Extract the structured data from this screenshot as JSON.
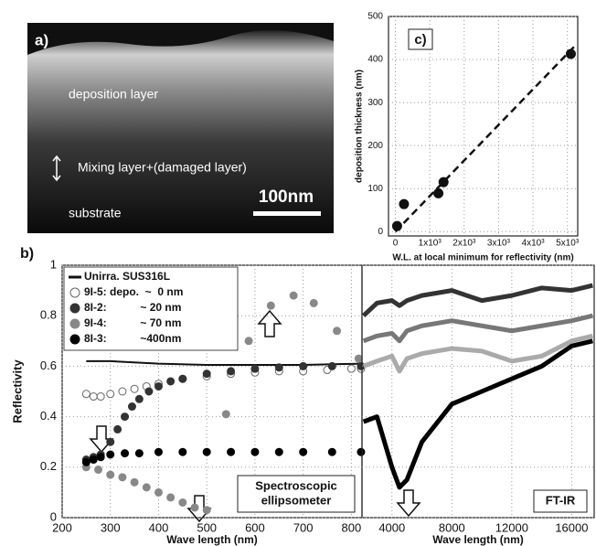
{
  "panel_a": {
    "label": "a)",
    "deposition": "deposition layer",
    "mixing": "Mixing layer+(damaged layer)",
    "substrate": "substrate",
    "scale_bar": "100nm"
  },
  "chart_data": [
    {
      "type": "scatter",
      "label": "c)",
      "x_label": "W.L. at local minimum for reflectivity (nm)",
      "y_label": "deposition thickness (nm)",
      "xlim": [
        -200,
        5300
      ],
      "ylim": [
        -10,
        500
      ],
      "xticks": [
        0,
        {
          "value": 1000,
          "label": "1x10³"
        },
        {
          "value": 2000,
          "label": "2x10³"
        },
        {
          "value": 3000,
          "label": "3x10³"
        },
        {
          "value": 4000,
          "label": "4x10³"
        },
        {
          "value": 5000,
          "label": "5x10³"
        }
      ],
      "yticks": [
        0,
        100,
        200,
        300,
        400,
        500
      ],
      "grid": true,
      "series": [
        {
          "style": "points",
          "color": "#111",
          "x": [
            50,
            250,
            1250,
            1400,
            5100
          ],
          "values": [
            13,
            64,
            89,
            115,
            413
          ]
        },
        {
          "style": "dashed-line",
          "color": "#111",
          "x": [
            0,
            5200
          ],
          "values": [
            0,
            430
          ]
        }
      ]
    },
    {
      "type": "line",
      "label": "b)",
      "x_label": "Wave length (nm)",
      "y_label": "Reflectivity",
      "annotation": [
        "Spectroscopic",
        "ellipsometer"
      ],
      "xlim": [
        200,
        822
      ],
      "ylim": [
        0,
        1
      ],
      "xticks": [
        200,
        300,
        400,
        500,
        600,
        700,
        800
      ],
      "yticks": [
        0,
        0.2,
        0.4,
        0.6,
        0.8,
        1
      ],
      "grid": true,
      "series": [
        {
          "name": "Unirra. SUS316L",
          "style": "line",
          "color": "#111",
          "x": [
            250,
            300,
            400,
            500,
            600,
            700,
            820
          ],
          "values": [
            0.62,
            0.62,
            0.61,
            0.605,
            0.605,
            0.605,
            0.61
          ]
        },
        {
          "name": "9I-5: depo.  ~  0 nm",
          "style": "open-points",
          "color": "#666",
          "x": [
            250,
            265,
            280,
            300,
            325,
            350,
            375,
            400,
            450,
            500,
            550,
            600,
            650,
            700,
            750,
            800,
            820
          ],
          "values": [
            0.49,
            0.48,
            0.48,
            0.49,
            0.5,
            0.51,
            0.52,
            0.53,
            0.55,
            0.56,
            0.57,
            0.575,
            0.58,
            0.58,
            0.585,
            0.59,
            0.59
          ]
        },
        {
          "name": "8I-2:           ~ 20 nm",
          "style": "points",
          "color": "#333",
          "x": [
            250,
            265,
            280,
            300,
            315,
            330,
            345,
            360,
            380,
            400,
            425,
            450,
            500,
            550,
            600,
            650,
            700,
            760,
            820
          ],
          "values": [
            0.23,
            0.24,
            0.25,
            0.3,
            0.35,
            0.4,
            0.44,
            0.47,
            0.5,
            0.52,
            0.54,
            0.55,
            0.57,
            0.58,
            0.59,
            0.595,
            0.6,
            0.6,
            0.6
          ]
        },
        {
          "name": "9I-4:           ~ 70 nm",
          "style": "points",
          "color": "#888",
          "x": [
            250,
            275,
            300,
            325,
            350,
            375,
            400,
            425,
            450,
            475,
            500,
            540,
            587,
            633,
            680,
            722,
            770,
            815
          ],
          "values": [
            0.2,
            0.19,
            0.17,
            0.16,
            0.14,
            0.12,
            0.1,
            0.08,
            0.06,
            0.04,
            0.03,
            0.41,
            0.7,
            0.84,
            0.88,
            0.85,
            0.74,
            0.63
          ]
        },
        {
          "name": "8I-3:           ~400nm",
          "style": "points",
          "color": "#000",
          "x": [
            250,
            265,
            280,
            300,
            330,
            360,
            400,
            450,
            500,
            550,
            600,
            650,
            700,
            760,
            820
          ],
          "values": [
            0.22,
            0.23,
            0.24,
            0.25,
            0.255,
            0.255,
            0.26,
            0.26,
            0.26,
            0.26,
            0.26,
            0.26,
            0.26,
            0.26,
            0.26
          ]
        }
      ]
    },
    {
      "type": "line",
      "x_label": "Wave length (nm)",
      "annotation": [
        "FT-IR"
      ],
      "xlim": [
        2000,
        17500
      ],
      "ylim": [
        0,
        1
      ],
      "xticks": [
        4000,
        8000,
        12000,
        16000
      ],
      "grid": true,
      "series": [
        {
          "style": "thick-line",
          "color": "#333",
          "x": [
            2100,
            3000,
            4000,
            4500,
            5000,
            6000,
            8000,
            10000,
            12000,
            14000,
            16000,
            17400
          ],
          "values": [
            0.8,
            0.85,
            0.86,
            0.84,
            0.86,
            0.88,
            0.9,
            0.86,
            0.88,
            0.91,
            0.9,
            0.92
          ]
        },
        {
          "style": "thick-line",
          "color": "#777",
          "x": [
            2100,
            3000,
            4000,
            4500,
            5000,
            6000,
            8000,
            10000,
            12000,
            14000,
            16000,
            17400
          ],
          "values": [
            0.7,
            0.72,
            0.73,
            0.7,
            0.74,
            0.76,
            0.78,
            0.76,
            0.74,
            0.76,
            0.78,
            0.8
          ]
        },
        {
          "style": "thick-line",
          "color": "#aaa",
          "x": [
            2100,
            3000,
            4000,
            4500,
            5000,
            6000,
            8000,
            10000,
            12000,
            14000,
            16000,
            17400
          ],
          "values": [
            0.6,
            0.62,
            0.64,
            0.58,
            0.63,
            0.65,
            0.67,
            0.66,
            0.62,
            0.64,
            0.7,
            0.72
          ]
        },
        {
          "style": "thick-line",
          "color": "#000",
          "x": [
            2100,
            3000,
            4000,
            4500,
            5000,
            6000,
            8000,
            10000,
            12000,
            14000,
            16000,
            17400
          ],
          "values": [
            0.38,
            0.4,
            0.2,
            0.12,
            0.15,
            0.3,
            0.45,
            0.5,
            0.55,
            0.6,
            0.68,
            0.7
          ]
        }
      ]
    }
  ]
}
